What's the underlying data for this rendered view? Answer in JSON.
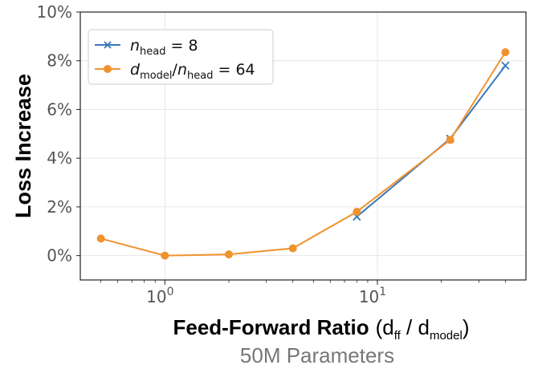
{
  "chart_data": {
    "type": "line",
    "x_scale": "log",
    "xlim": [
      0.4,
      50
    ],
    "ylim": [
      -1,
      10
    ],
    "y_ticks": [
      0,
      2,
      4,
      6,
      8,
      10
    ],
    "y_tick_labels": [
      "0%",
      "2%",
      "4%",
      "6%",
      "8%",
      "10%"
    ],
    "x_ticks": [
      1,
      10
    ],
    "x_tick_bases": [
      "10",
      "10"
    ],
    "x_tick_exps": [
      "0",
      "1"
    ],
    "ylabel": "Loss Increase",
    "xlabel_bold": "Feed-Forward Ratio",
    "xlabel_open": "(d",
    "xlabel_sub1": "ff",
    "xlabel_mid": " / d",
    "xlabel_sub2": "model",
    "xlabel_close": ")",
    "caption": "50M Parameters",
    "grid": true,
    "legend_position": "top-left",
    "series": [
      {
        "name": "n_head = 8",
        "legend_parts": {
          "main": "n",
          "sub": "head",
          "rest": " = 8"
        },
        "color": "#3a78b8",
        "marker": "x",
        "x": [
          8,
          22,
          40
        ],
        "y": [
          1.6,
          4.8,
          7.8
        ]
      },
      {
        "name": "d_model/n_head = 64",
        "legend_parts": {
          "main1": "d",
          "sub1": "model",
          "slash": "/",
          "main2": "n",
          "sub2": "head",
          "rest": " = 64"
        },
        "color": "#f0922e",
        "marker": "o",
        "x": [
          0.5,
          1,
          2,
          4,
          8,
          22,
          40
        ],
        "y": [
          0.7,
          0.0,
          0.05,
          0.3,
          1.8,
          4.75,
          8.35
        ]
      }
    ]
  }
}
